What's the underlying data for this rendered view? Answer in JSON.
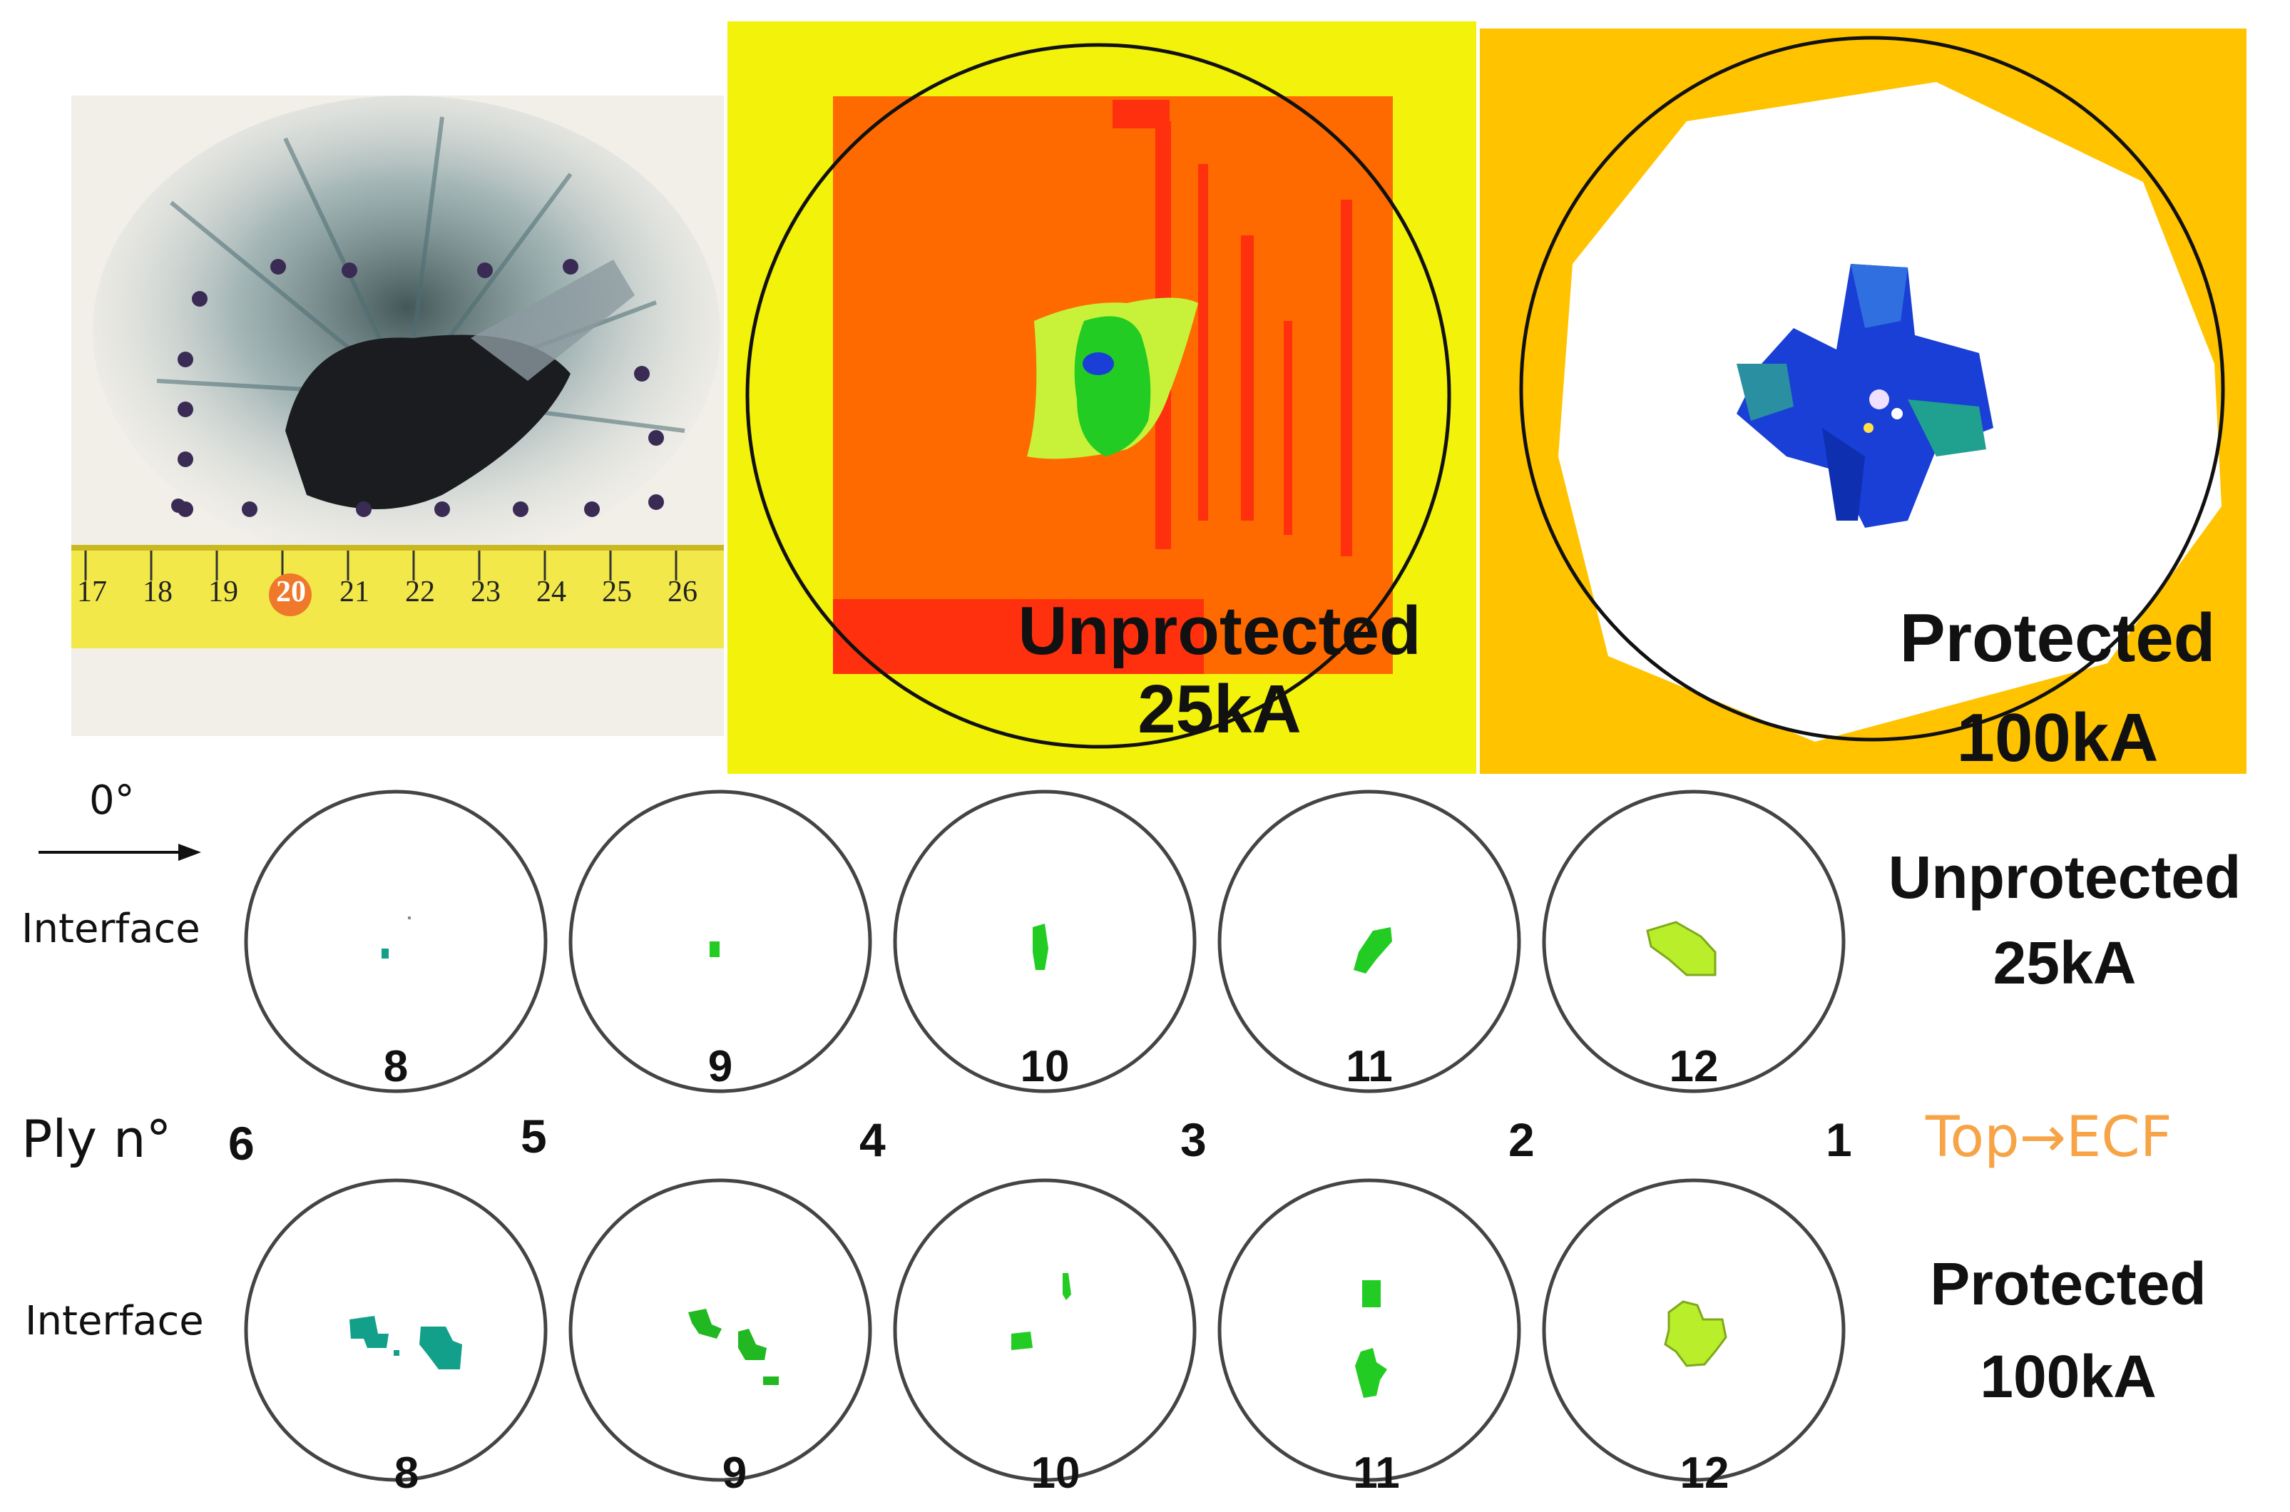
{
  "photo": {
    "ruler_ticks": [
      "17",
      "18",
      "19",
      "20",
      "21",
      "22",
      "23",
      "24",
      "25",
      "26"
    ],
    "ruler_highlight": "20"
  },
  "map_unprotected": {
    "line1": "Unprotected",
    "line2": "25kA"
  },
  "map_protected": {
    "line1": "Protected",
    "line2": "100kA"
  },
  "orientation_label": "0°",
  "top_row": {
    "interface_label": "Interface",
    "numbers": [
      "8",
      "9",
      "10",
      "11",
      "12"
    ],
    "side_label_line1": "Unprotected",
    "side_label_line2": "25kA"
  },
  "ply_row": {
    "label": "Ply n°",
    "numbers": [
      "6",
      "5",
      "4",
      "3",
      "2",
      "1"
    ],
    "direction": "Top→ECF"
  },
  "bottom_row": {
    "interface_label": "Interface",
    "numbers": [
      "8",
      "9",
      "10",
      "11",
      "12"
    ],
    "side_label_line1": "Protected",
    "side_label_line2": "100kA"
  },
  "colors": {
    "yellow_bg": "#f2f20a",
    "orange_square": "#ff6a00",
    "red_streaks": "#ff2a10",
    "amber_bg": "#ffc300",
    "blue_damage": "#1a3fd6",
    "green_damage": "#22cc22",
    "teal_damage": "#12a08a",
    "lime_damage": "#b8ee2a",
    "accent_orange": "#f7a447"
  }
}
